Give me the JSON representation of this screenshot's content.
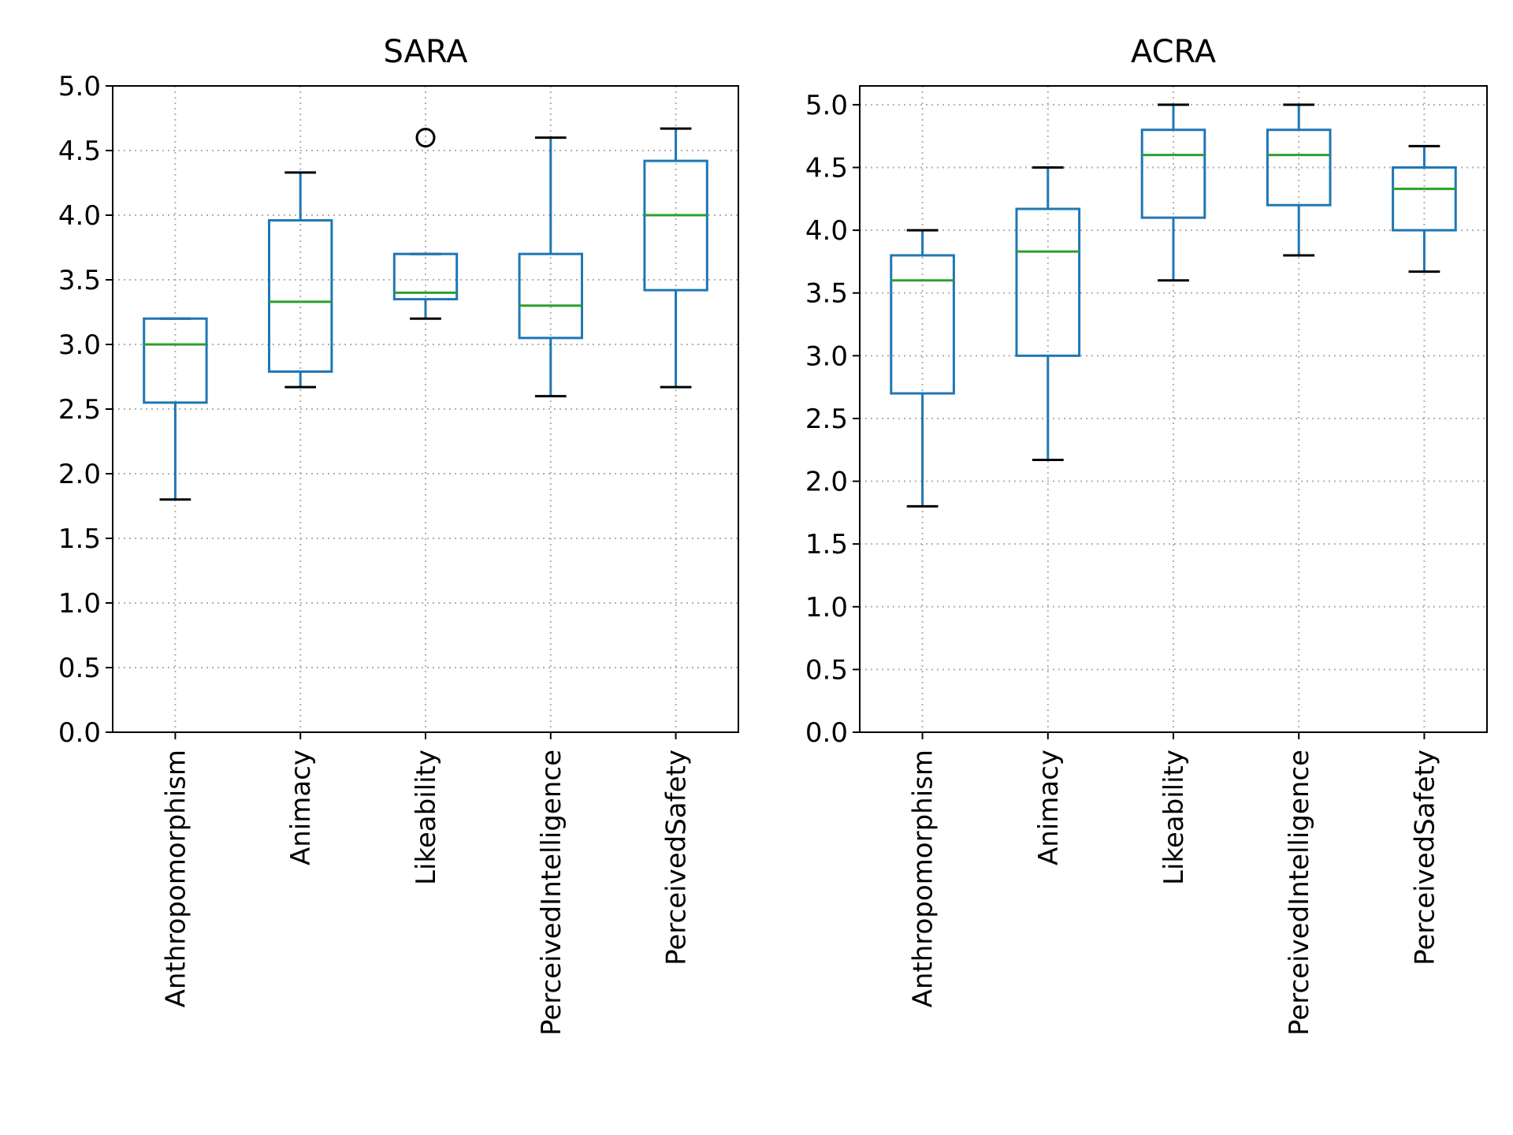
{
  "chart_data": [
    {
      "type": "box",
      "title": "SARA",
      "xlabel": "",
      "ylabel": "",
      "ylim": [
        0,
        5.0
      ],
      "yticks": [
        "0.0",
        "0.5",
        "1.0",
        "1.5",
        "2.0",
        "2.5",
        "3.0",
        "3.5",
        "4.0",
        "4.5",
        "5.0"
      ],
      "grid": true,
      "categories": [
        "Anthropomorphism",
        "Animacy",
        "Likeability",
        "PerceivedIntelligence",
        "PerceivedSafety"
      ],
      "boxes": [
        {
          "whisker_low": 1.8,
          "q1": 2.55,
          "median": 3.0,
          "q3": 3.2,
          "whisker_high": 3.2,
          "outliers": []
        },
        {
          "whisker_low": 2.67,
          "q1": 2.79,
          "median": 3.33,
          "q3": 3.96,
          "whisker_high": 4.33,
          "outliers": []
        },
        {
          "whisker_low": 3.2,
          "q1": 3.35,
          "median": 3.4,
          "q3": 3.7,
          "whisker_high": 3.7,
          "outliers": [
            4.6
          ]
        },
        {
          "whisker_low": 2.6,
          "q1": 3.05,
          "median": 3.3,
          "q3": 3.7,
          "whisker_high": 4.6,
          "outliers": []
        },
        {
          "whisker_low": 2.67,
          "q1": 3.42,
          "median": 4.0,
          "q3": 4.42,
          "whisker_high": 4.67,
          "outliers": []
        }
      ]
    },
    {
      "type": "box",
      "title": "ACRA",
      "xlabel": "",
      "ylabel": "",
      "ylim": [
        0,
        5.15
      ],
      "yticks": [
        "0.0",
        "0.5",
        "1.0",
        "1.5",
        "2.0",
        "2.5",
        "3.0",
        "3.5",
        "4.0",
        "4.5",
        "5.0"
      ],
      "grid": true,
      "categories": [
        "Anthropomorphism",
        "Animacy",
        "Likeability",
        "PerceivedIntelligence",
        "PerceivedSafety"
      ],
      "boxes": [
        {
          "whisker_low": 1.8,
          "q1": 2.7,
          "median": 3.6,
          "q3": 3.8,
          "whisker_high": 4.0,
          "outliers": []
        },
        {
          "whisker_low": 2.17,
          "q1": 3.0,
          "median": 3.83,
          "q3": 4.17,
          "whisker_high": 4.5,
          "outliers": []
        },
        {
          "whisker_low": 3.6,
          "q1": 4.1,
          "median": 4.6,
          "q3": 4.8,
          "whisker_high": 5.0,
          "outliers": []
        },
        {
          "whisker_low": 3.8,
          "q1": 4.2,
          "median": 4.6,
          "q3": 4.8,
          "whisker_high": 5.0,
          "outliers": []
        },
        {
          "whisker_low": 3.67,
          "q1": 4.0,
          "median": 4.33,
          "q3": 4.5,
          "whisker_high": 4.67,
          "outliers": []
        }
      ]
    }
  ],
  "colors": {
    "box": "#1f77b4",
    "median": "#2ca02c",
    "whisker_cap": "#000000",
    "grid": "#b0b0b0",
    "outlier": "#000000"
  }
}
